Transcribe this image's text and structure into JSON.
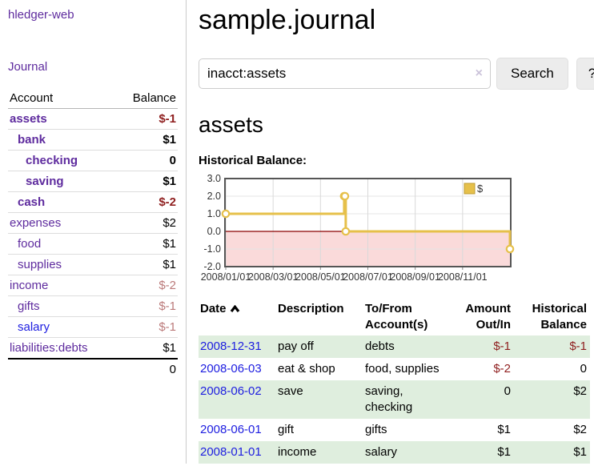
{
  "sidebar": {
    "brand": "hledger-web",
    "journal_label": "Journal",
    "accounts_table": {
      "headers": {
        "account": "Account",
        "balance": "Balance"
      },
      "rows": [
        {
          "name": "assets",
          "indent": 1,
          "bold": true,
          "balance": "$-1",
          "neg": "strong",
          "link": "purple"
        },
        {
          "name": "bank",
          "indent": 2,
          "bold": true,
          "balance": "$1",
          "neg": "none",
          "link": "purple"
        },
        {
          "name": "checking",
          "indent": 3,
          "bold": true,
          "balance": "0",
          "neg": "none",
          "link": "purple"
        },
        {
          "name": "saving",
          "indent": 3,
          "bold": true,
          "balance": "$1",
          "neg": "none",
          "link": "purple"
        },
        {
          "name": "cash",
          "indent": 2,
          "bold": true,
          "balance": "$-2",
          "neg": "strong",
          "link": "purple"
        },
        {
          "name": "expenses",
          "indent": 1,
          "bold": false,
          "balance": "$2",
          "neg": "none",
          "link": "purple"
        },
        {
          "name": "food",
          "indent": 2,
          "bold": false,
          "balance": "$1",
          "neg": "none",
          "link": "purple"
        },
        {
          "name": "supplies",
          "indent": 2,
          "bold": false,
          "balance": "$1",
          "neg": "none",
          "link": "purple"
        },
        {
          "name": "income",
          "indent": 1,
          "bold": false,
          "balance": "$-2",
          "neg": "soft",
          "link": "purple"
        },
        {
          "name": "gifts",
          "indent": 2,
          "bold": false,
          "balance": "$-1",
          "neg": "soft",
          "link": "purple"
        },
        {
          "name": "salary",
          "indent": 2,
          "bold": false,
          "balance": "$-1",
          "neg": "soft",
          "link": "blue"
        },
        {
          "name": "liabilities:debts",
          "indent": 1,
          "bold": false,
          "balance": "$1",
          "neg": "none",
          "link": "purple"
        }
      ],
      "total": "0"
    }
  },
  "main": {
    "title": "sample.journal",
    "search": {
      "value": "inacct:assets",
      "clear_icon": "×",
      "button_label": "Search",
      "help_label": "?"
    },
    "account_heading": "assets",
    "chart_label": "Historical Balance:"
  },
  "icons": {
    "clear_search": "x-circle-clear",
    "date_sort": "chevron-up",
    "legend_swatch": "yellow-square"
  },
  "chart_data": {
    "type": "line",
    "step": true,
    "title": "Historical Balance",
    "series": [
      {
        "name": "$",
        "points": [
          {
            "date": "2008-01-01",
            "value": 1
          },
          {
            "date": "2008-06-01",
            "value": 2
          },
          {
            "date": "2008-06-02",
            "value": 2
          },
          {
            "date": "2008-06-03",
            "value": 0
          },
          {
            "date": "2008-12-31",
            "value": -1
          }
        ]
      }
    ],
    "ylim": [
      -2,
      3
    ],
    "yticks": [
      "3.0",
      "2.0",
      "1.0",
      "0.0",
      "-1.0",
      "-2.0"
    ],
    "ytick_values": [
      3,
      2,
      1,
      0,
      -1,
      -2
    ],
    "x_domain_months": [
      0,
      12
    ],
    "xtick_months": [
      0,
      2,
      4,
      6,
      8,
      10
    ],
    "xticks": [
      "2008/01/01",
      "2008/03/01",
      "2008/05/01",
      "2008/07/01",
      "2008/09/01",
      "2008/11/01"
    ],
    "legend": {
      "label": "$",
      "position": "top-right"
    },
    "grid": true,
    "colors": {
      "line": "#e6c04a",
      "marker_fill": "#ffffff",
      "negative_region": "#fadada",
      "zero_line": "#8b0000",
      "border": "#555555",
      "gridline": "#d9d9d9"
    }
  },
  "register": {
    "headers": {
      "date": "Date",
      "description": "Description",
      "accounts": "To/From Account(s)",
      "amount": "Amount Out/In",
      "balance": "Historical Balance"
    },
    "rows": [
      {
        "date": "2008-12-31",
        "description": "pay off",
        "accounts": "debts",
        "amount": "$-1",
        "balance": "$-1"
      },
      {
        "date": "2008-06-03",
        "description": "eat & shop",
        "accounts": "food, supplies",
        "amount": "$-2",
        "balance": "0"
      },
      {
        "date": "2008-06-02",
        "description": "save",
        "accounts": "saving, checking",
        "amount": "0",
        "balance": "$2"
      },
      {
        "date": "2008-06-01",
        "description": "gift",
        "accounts": "gifts",
        "amount": "$1",
        "balance": "$2"
      },
      {
        "date": "2008-01-01",
        "description": "income",
        "accounts": "salary",
        "amount": "$1",
        "balance": "$1"
      }
    ]
  },
  "colors": {
    "link_purple": "#5e2b9e",
    "link_blue": "#1d1de0",
    "negative_strong": "#8f1f1f",
    "negative_soft": "#bb7a7a",
    "row_green": "#dfeede"
  }
}
